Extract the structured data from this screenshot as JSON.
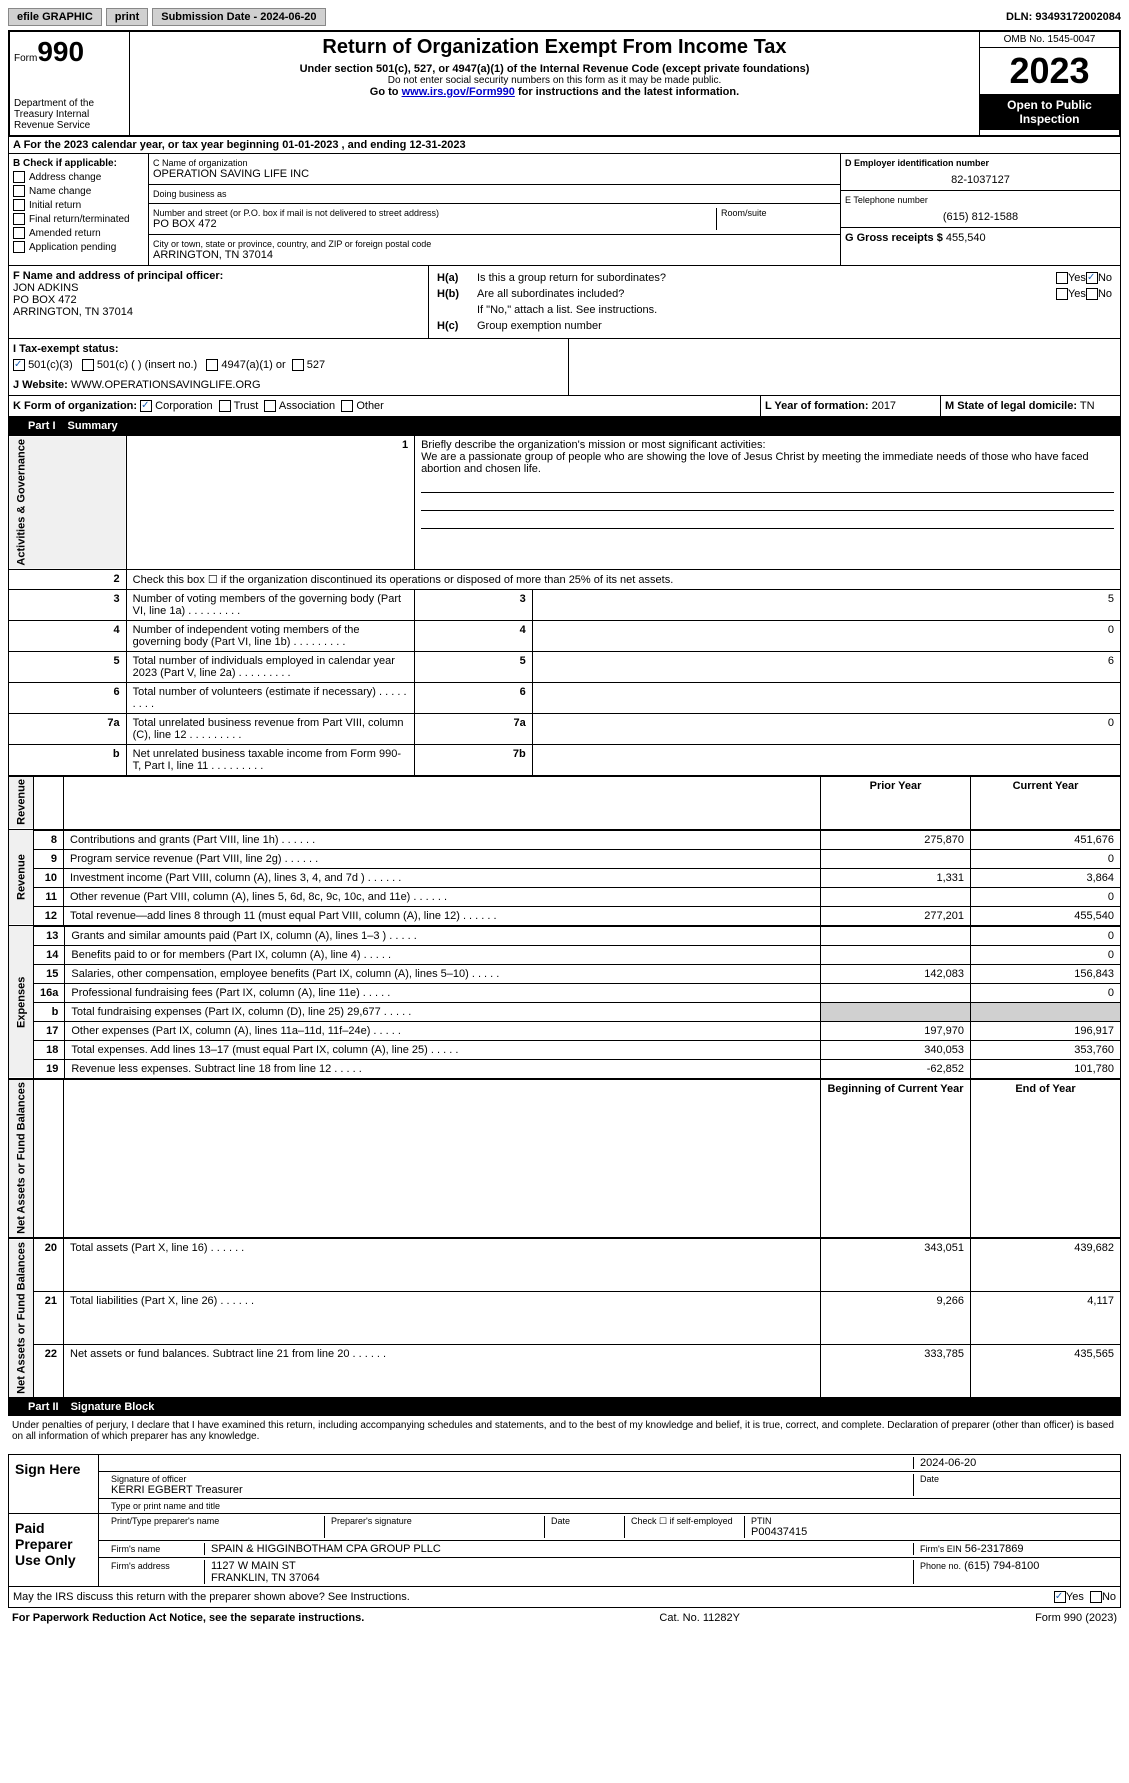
{
  "topbar": {
    "efile": "efile GRAPHIC",
    "print": "print",
    "submission": "Submission Date - 2024-06-20",
    "dln": "DLN: 93493172002084"
  },
  "header": {
    "form_label": "Form",
    "form_number": "990",
    "title": "Return of Organization Exempt From Income Tax",
    "subtitle": "Under section 501(c), 527, or 4947(a)(1) of the Internal Revenue Code (except private foundations)",
    "warning": "Do not enter social security numbers on this form as it may be made public.",
    "goto": "Go to",
    "goto_url": "www.irs.gov/Form990",
    "goto_suffix": "for instructions and the latest information.",
    "dept": "Department of the Treasury Internal Revenue Service",
    "omb": "OMB No. 1545-0047",
    "year": "2023",
    "inspection": "Open to Public Inspection"
  },
  "section_a": "A For the 2023 calendar year, or tax year beginning 01-01-2023   , and ending 12-31-2023",
  "section_b": {
    "title": "B Check if applicable:",
    "items": [
      "Address change",
      "Name change",
      "Initial return",
      "Final return/terminated",
      "Amended return",
      "Application pending"
    ]
  },
  "section_c": {
    "name_label": "C Name of organization",
    "name": "OPERATION SAVING LIFE INC",
    "dba_label": "Doing business as",
    "addr_label": "Number and street (or P.O. box if mail is not delivered to street address)",
    "addr": "PO BOX 472",
    "room_label": "Room/suite",
    "city_label": "City or town, state or province, country, and ZIP or foreign postal code",
    "city": "ARRINGTON, TN  37014"
  },
  "section_d": {
    "label": "D Employer identification number",
    "value": "82-1037127"
  },
  "section_e": {
    "label": "E Telephone number",
    "value": "(615) 812-1588"
  },
  "section_g": {
    "label": "G Gross receipts $",
    "value": "455,540"
  },
  "section_f": {
    "label": "F Name and address of principal officer:",
    "name": "JON ADKINS",
    "addr": "PO BOX 472",
    "city": "ARRINGTON, TN  37014"
  },
  "section_h": {
    "a_label": "H(a)",
    "a_text": "Is this a group return for subordinates?",
    "b_label": "H(b)",
    "b_text": "Are all subordinates included?",
    "b_note": "If \"No,\" attach a list. See instructions.",
    "c_label": "H(c)",
    "c_text": "Group exemption number"
  },
  "tax_status": {
    "label": "I   Tax-exempt status:",
    "opts": [
      "501(c)(3)",
      "501(c) (  ) (insert no.)",
      "4947(a)(1) or",
      "527"
    ]
  },
  "website": {
    "label": "J   Website:",
    "value": "WWW.OPERATIONSAVINGLIFE.ORG"
  },
  "section_k": {
    "label": "K Form of organization:",
    "opts": [
      "Corporation",
      "Trust",
      "Association",
      "Other"
    ]
  },
  "section_l": {
    "label": "L Year of formation:",
    "value": "2017"
  },
  "section_m": {
    "label": "M State of legal domicile:",
    "value": "TN"
  },
  "part1": {
    "label": "Part I",
    "title": "Summary"
  },
  "mission": {
    "num": "1",
    "label": "Briefly describe the organization's mission or most significant activities:",
    "text": "We are a passionate group of people who are showing the love of Jesus Christ by meeting the immediate needs of those who have faced abortion and chosen life."
  },
  "governance": {
    "label": "Activities & Governance",
    "rows": [
      {
        "n": "2",
        "t": "Check this box ☐ if the organization discontinued its operations or disposed of more than 25% of its net assets.",
        "k": "",
        "v": ""
      },
      {
        "n": "3",
        "t": "Number of voting members of the governing body (Part VI, line 1a)",
        "k": "3",
        "v": "5"
      },
      {
        "n": "4",
        "t": "Number of independent voting members of the governing body (Part VI, line 1b)",
        "k": "4",
        "v": "0"
      },
      {
        "n": "5",
        "t": "Total number of individuals employed in calendar year 2023 (Part V, line 2a)",
        "k": "5",
        "v": "6"
      },
      {
        "n": "6",
        "t": "Total number of volunteers (estimate if necessary)",
        "k": "6",
        "v": ""
      },
      {
        "n": "7a",
        "t": "Total unrelated business revenue from Part VIII, column (C), line 12",
        "k": "7a",
        "v": "0"
      },
      {
        "n": "b",
        "t": "Net unrelated business taxable income from Form 990-T, Part I, line 11",
        "k": "7b",
        "v": ""
      }
    ]
  },
  "revenue": {
    "label": "Revenue",
    "header_prior": "Prior Year",
    "header_current": "Current Year",
    "rows": [
      {
        "n": "8",
        "t": "Contributions and grants (Part VIII, line 1h)",
        "p": "275,870",
        "c": "451,676"
      },
      {
        "n": "9",
        "t": "Program service revenue (Part VIII, line 2g)",
        "p": "",
        "c": "0"
      },
      {
        "n": "10",
        "t": "Investment income (Part VIII, column (A), lines 3, 4, and 7d )",
        "p": "1,331",
        "c": "3,864"
      },
      {
        "n": "11",
        "t": "Other revenue (Part VIII, column (A), lines 5, 6d, 8c, 9c, 10c, and 11e)",
        "p": "",
        "c": "0"
      },
      {
        "n": "12",
        "t": "Total revenue—add lines 8 through 11 (must equal Part VIII, column (A), line 12)",
        "p": "277,201",
        "c": "455,540"
      }
    ]
  },
  "expenses": {
    "label": "Expenses",
    "rows": [
      {
        "n": "13",
        "t": "Grants and similar amounts paid (Part IX, column (A), lines 1–3 )",
        "p": "",
        "c": "0"
      },
      {
        "n": "14",
        "t": "Benefits paid to or for members (Part IX, column (A), line 4)",
        "p": "",
        "c": "0"
      },
      {
        "n": "15",
        "t": "Salaries, other compensation, employee benefits (Part IX, column (A), lines 5–10)",
        "p": "142,083",
        "c": "156,843"
      },
      {
        "n": "16a",
        "t": "Professional fundraising fees (Part IX, column (A), line 11e)",
        "p": "",
        "c": "0"
      },
      {
        "n": "b",
        "t": "Total fundraising expenses (Part IX, column (D), line 25) 29,677",
        "p": "",
        "c": "",
        "shaded": true
      },
      {
        "n": "17",
        "t": "Other expenses (Part IX, column (A), lines 11a–11d, 11f–24e)",
        "p": "197,970",
        "c": "196,917"
      },
      {
        "n": "18",
        "t": "Total expenses. Add lines 13–17 (must equal Part IX, column (A), line 25)",
        "p": "340,053",
        "c": "353,760"
      },
      {
        "n": "19",
        "t": "Revenue less expenses. Subtract line 18 from line 12",
        "p": "-62,852",
        "c": "101,780"
      }
    ]
  },
  "netassets": {
    "label": "Net Assets or Fund Balances",
    "header_prior": "Beginning of Current Year",
    "header_current": "End of Year",
    "rows": [
      {
        "n": "20",
        "t": "Total assets (Part X, line 16)",
        "p": "343,051",
        "c": "439,682"
      },
      {
        "n": "21",
        "t": "Total liabilities (Part X, line 26)",
        "p": "9,266",
        "c": "4,117"
      },
      {
        "n": "22",
        "t": "Net assets or fund balances. Subtract line 21 from line 20",
        "p": "333,785",
        "c": "435,565"
      }
    ]
  },
  "part2": {
    "label": "Part II",
    "title": "Signature Block",
    "declaration": "Under penalties of perjury, I declare that I have examined this return, including accompanying schedules and statements, and to the best of my knowledge and belief, it is true, correct, and complete. Declaration of preparer (other than officer) is based on all information of which preparer has any knowledge."
  },
  "sign": {
    "label": "Sign Here",
    "sig_label": "Signature of officer",
    "name": "KERRI EGBERT Treasurer",
    "name_label": "Type or print name and title",
    "date_label": "Date",
    "date": "2024-06-20"
  },
  "preparer": {
    "label": "Paid Preparer Use Only",
    "print_label": "Print/Type preparer's name",
    "sig_label": "Preparer's signature",
    "date_label": "Date",
    "check_label": "Check ☐ if self-employed",
    "ptin_label": "PTIN",
    "ptin": "P00437415",
    "firm_name_label": "Firm's name",
    "firm_name": "SPAIN & HIGGINBOTHAM CPA GROUP PLLC",
    "firm_ein_label": "Firm's EIN",
    "firm_ein": "56-2317869",
    "firm_addr_label": "Firm's address",
    "firm_addr": "1127 W MAIN ST",
    "firm_city": "FRANKLIN, TN  37064",
    "phone_label": "Phone no.",
    "phone": "(615) 794-8100"
  },
  "discuss": "May the IRS discuss this return with the preparer shown above? See Instructions.",
  "footer": {
    "left": "For Paperwork Reduction Act Notice, see the separate instructions.",
    "center": "Cat. No. 11282Y",
    "right": "Form 990 (2023)"
  }
}
